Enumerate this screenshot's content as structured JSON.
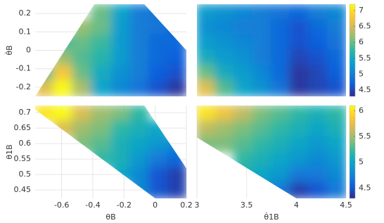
{
  "chart_data": [
    {
      "type": "heatmap",
      "x": [
        -0.71,
        -0.59,
        -0.47,
        -0.35,
        -0.22,
        -0.1,
        0.02,
        0.14
      ],
      "y": [
        0.208,
        0.125,
        0.042,
        -0.042,
        -0.125,
        -0.208
      ],
      "z": [
        [
          null,
          null,
          null,
          6.0,
          5.4,
          5.0,
          4.9,
          null
        ],
        [
          null,
          null,
          6.2,
          6.0,
          5.3,
          5.0,
          4.9,
          4.8
        ],
        [
          null,
          5.8,
          6.0,
          5.8,
          5.3,
          5.0,
          4.8,
          4.8
        ],
        [
          null,
          6.2,
          5.9,
          5.7,
          5.3,
          5.0,
          4.8,
          4.7
        ],
        [
          5.9,
          6.8,
          6.0,
          5.5,
          5.2,
          5.0,
          4.7,
          4.6
        ],
        [
          6.6,
          7.2,
          6.3,
          5.4,
          5.1,
          4.9,
          4.6,
          4.4
        ]
      ],
      "xlim": [
        -0.77,
        0.2
      ],
      "ylim": [
        -0.25,
        0.25
      ],
      "yticks": [
        -0.2,
        -0.1,
        0,
        0.1,
        0.2
      ],
      "ylabel": "θ̇B",
      "domain": [
        [
          -0.77,
          -0.25
        ],
        [
          -0.39,
          0.25
        ],
        [
          -0.07,
          0.25
        ],
        [
          0.2,
          0.0
        ],
        [
          0.2,
          -0.25
        ]
      ],
      "zlim": [
        4.3,
        7.2
      ],
      "grid": true,
      "colormap": [
        "#352a87",
        "#0f5cdd",
        "#1481d6",
        "#06a4ca",
        "#2eb7a4",
        "#87bf77",
        "#d1bb59",
        "#fec832",
        "#f9fb0e"
      ]
    },
    {
      "type": "heatmap",
      "x": [
        3.09,
        3.28,
        3.47,
        3.66,
        3.84,
        4.03,
        4.22,
        4.41
      ],
      "y": [
        0.208,
        0.125,
        0.042,
        -0.042,
        -0.125,
        -0.208
      ],
      "z": [
        [
          5.3,
          5.2,
          5.1,
          5.0,
          4.9,
          4.8,
          5.0,
          5.1
        ],
        [
          5.2,
          5.1,
          5.0,
          5.0,
          4.8,
          4.6,
          4.8,
          5.0
        ],
        [
          5.3,
          5.2,
          5.1,
          5.0,
          4.8,
          4.6,
          4.7,
          4.9
        ],
        [
          5.5,
          5.3,
          5.2,
          5.0,
          4.8,
          4.5,
          4.6,
          4.8
        ],
        [
          6.0,
          5.5,
          5.3,
          5.1,
          4.8,
          4.4,
          4.5,
          4.7
        ],
        [
          6.6,
          5.9,
          5.4,
          5.2,
          4.9,
          4.4,
          4.5,
          4.6
        ]
      ],
      "xlim": [
        3,
        4.5
      ],
      "ylim": [
        -0.25,
        0.25
      ],
      "zlim": [
        4.3,
        7.2
      ],
      "zticks": [
        4.5,
        5,
        5.5,
        6,
        6.5,
        7
      ],
      "grid": true,
      "colormap": [
        "#352a87",
        "#0f5cdd",
        "#1481d6",
        "#06a4ca",
        "#2eb7a4",
        "#87bf77",
        "#d1bb59",
        "#fec832",
        "#f9fb0e"
      ]
    },
    {
      "type": "heatmap",
      "x": [
        -0.71,
        -0.59,
        -0.47,
        -0.35,
        -0.22,
        -0.1,
        0.02,
        0.14
      ],
      "y": [
        0.698,
        0.648,
        0.598,
        0.548,
        0.498,
        0.448
      ],
      "z": [
        [
          6.0,
          6.1,
          5.7,
          5.5,
          5.4,
          5.2,
          null,
          null
        ],
        [
          null,
          5.7,
          5.5,
          5.4,
          5.2,
          5.1,
          5.0,
          null
        ],
        [
          null,
          null,
          5.4,
          5.3,
          5.1,
          5.0,
          4.9,
          4.8
        ],
        [
          null,
          null,
          null,
          5.2,
          5.1,
          4.9,
          4.7,
          4.6
        ],
        [
          null,
          null,
          null,
          null,
          5.0,
          4.8,
          4.5,
          4.4
        ],
        [
          null,
          null,
          null,
          null,
          null,
          4.8,
          4.5,
          4.4
        ]
      ],
      "xlim": [
        -0.77,
        0.2
      ],
      "ylim": [
        0.423,
        0.723
      ],
      "xticks": [
        -0.6,
        -0.4,
        -0.2,
        0,
        0.2
      ],
      "xlabel": "θB",
      "yticks": [
        0.45,
        0.5,
        0.55,
        0.6,
        0.65,
        0.7
      ],
      "ylabel": "θ1B",
      "domain": [
        [
          -0.77,
          0.723
        ],
        [
          -0.07,
          0.723
        ],
        [
          0.2,
          0.52
        ],
        [
          0.2,
          0.423
        ],
        [
          0.0,
          0.423
        ],
        [
          -0.77,
          0.71
        ]
      ],
      "zlim": [
        4.3,
        6.1
      ],
      "grid": true,
      "colormap": [
        "#352a87",
        "#0f5cdd",
        "#1481d6",
        "#06a4ca",
        "#2eb7a4",
        "#87bf77",
        "#d1bb59",
        "#fec832",
        "#f9fb0e"
      ]
    },
    {
      "type": "heatmap",
      "x": [
        3.09,
        3.28,
        3.47,
        3.66,
        3.84,
        4.03,
        4.22,
        4.41
      ],
      "y": [
        0.698,
        0.648,
        0.598,
        0.548,
        0.498,
        0.448
      ],
      "z": [
        [
          6.0,
          5.8,
          5.6,
          5.4,
          5.3,
          5.2,
          5.1,
          5.2
        ],
        [
          5.6,
          5.5,
          5.4,
          5.3,
          5.2,
          5.1,
          5.0,
          5.1
        ],
        [
          5.4,
          5.4,
          5.3,
          5.2,
          5.1,
          5.0,
          4.9,
          5.0
        ],
        [
          null,
          null,
          5.2,
          5.1,
          5.0,
          4.9,
          4.8,
          4.9
        ],
        [
          null,
          null,
          5.1,
          5.0,
          4.9,
          4.7,
          4.7,
          4.8
        ],
        [
          null,
          null,
          null,
          4.9,
          4.7,
          4.4,
          4.5,
          4.7
        ]
      ],
      "xlim": [
        3,
        4.5
      ],
      "ylim": [
        0.423,
        0.723
      ],
      "xticks": [
        3,
        3.5,
        4,
        4.5
      ],
      "xlabel": "θ̇1B",
      "domain": [
        [
          3,
          0.723
        ],
        [
          4.5,
          0.723
        ],
        [
          4.5,
          0.423
        ],
        [
          4.0,
          0.423
        ],
        [
          3,
          0.62
        ]
      ],
      "zlim": [
        4.3,
        6.1
      ],
      "zticks": [
        4.5,
        5,
        5.5,
        6
      ],
      "grid": true,
      "colormap": [
        "#352a87",
        "#0f5cdd",
        "#1481d6",
        "#06a4ca",
        "#2eb7a4",
        "#87bf77",
        "#d1bb59",
        "#fec832",
        "#f9fb0e"
      ]
    }
  ]
}
